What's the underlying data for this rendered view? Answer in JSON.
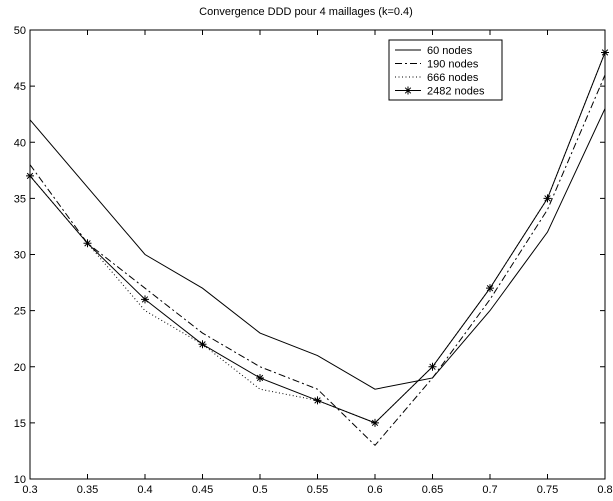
{
  "chart_data": {
    "type": "line",
    "title": "Convergence DDD pour 4 maillages (k=0.4)",
    "xlabel": "",
    "ylabel": "",
    "xlim": [
      0.3,
      0.8
    ],
    "ylim": [
      10,
      50
    ],
    "x_ticks": [
      "0.3",
      "0.35",
      "0.4",
      "0.45",
      "0.5",
      "0.55",
      "0.6",
      "0.65",
      "0.7",
      "0.75",
      "0.8"
    ],
    "y_ticks": [
      "10",
      "15",
      "20",
      "25",
      "30",
      "35",
      "40",
      "45",
      "50"
    ],
    "grid": false,
    "legend_position": "top-right",
    "x": [
      0.3,
      0.35,
      0.4,
      0.45,
      0.5,
      0.55,
      0.6,
      0.65,
      0.7,
      0.75,
      0.8
    ],
    "series": [
      {
        "name": "60 nodes",
        "style": "solid",
        "marker": "none",
        "values": [
          42,
          36,
          30,
          27,
          23,
          21,
          18,
          19,
          25,
          32,
          43
        ]
      },
      {
        "name": "190 nodes",
        "style": "dashdot",
        "marker": "none",
        "values": [
          38,
          31,
          27,
          23,
          20,
          18,
          13,
          19,
          26,
          34,
          46
        ]
      },
      {
        "name": "666 nodes",
        "style": "dotted",
        "marker": "none",
        "values": [
          37,
          31,
          25,
          22,
          18,
          17,
          15,
          20,
          27,
          35,
          48
        ]
      },
      {
        "name": "2482 nodes",
        "style": "solid",
        "marker": "star",
        "values": [
          37,
          31,
          26,
          22,
          19,
          17,
          15,
          20,
          27,
          35,
          48
        ]
      }
    ]
  }
}
